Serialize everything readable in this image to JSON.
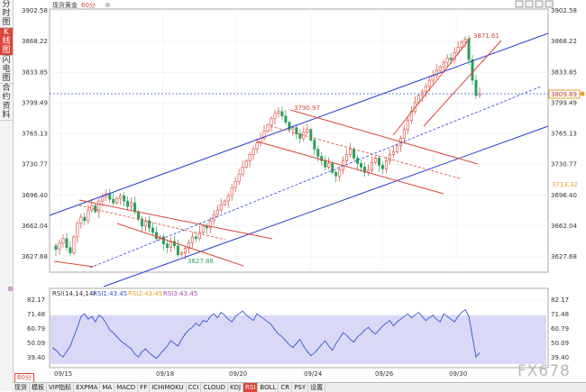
{
  "window": {
    "title": "现货黄金",
    "period": "60分",
    "watermark": "FX678"
  },
  "side_tabs": [
    "分时图",
    "K线图",
    "闪电图",
    "合约资料"
  ],
  "bottom_tabs": [
    "现货",
    "模板",
    "VIP指标",
    "EXPMA",
    "MA",
    "MACD",
    "FF",
    "ICHIMOKU",
    "CCI",
    "CLOUD",
    "KDJ",
    "RSI",
    "BOLL",
    "CR",
    "PSY",
    "设置"
  ],
  "bottom_active": "RSI",
  "period_button": "60分",
  "price_labels": {
    "high_marker": "3871.61",
    "peak_marker": "3790.97",
    "low_marker": "3627.88",
    "current_price": "3809.89",
    "channel_price": "3713.32"
  },
  "rsi_header": {
    "name": "RSI(14,14,14)",
    "rsi1": "RSI1:43.45",
    "rsi2": "RSI2:43.45",
    "rsi3": "RSI3:43.45"
  },
  "colors": {
    "up": "#d9463a",
    "down": "#2e9e5b",
    "channel_blue": "#2a3ecf",
    "channel_red": "#d9463a",
    "rsi_band": "#d9d9f7",
    "rsi1": "#3355cc",
    "rsi2": "#e0a02a",
    "rsi3": "#aa44aa"
  },
  "chart_data": {
    "type": "line",
    "price_axis": {
      "ticks": [
        "3902.58",
        "3868.22",
        "3833.85",
        "3799.49",
        "3765.13",
        "3730.77",
        "3696.40",
        "3662.04",
        "3627.68"
      ],
      "ylim": [
        3627.68,
        3902.58
      ]
    },
    "rsi_axis": {
      "ticks": [
        "82.17",
        "71.48",
        "60.79",
        "50.09",
        "39.40"
      ],
      "ylim": [
        39.4,
        82.17
      ]
    },
    "x_labels": [
      "09/15",
      "09/18",
      "09/20",
      "09/24",
      "09/26",
      "09/30"
    ],
    "price_series": [
      3640,
      3636,
      3643,
      3648,
      3638,
      3632,
      3650,
      3665,
      3672,
      3668,
      3680,
      3685,
      3678,
      3690,
      3695,
      3698,
      3692,
      3688,
      3693,
      3696,
      3690,
      3684,
      3688,
      3678,
      3670,
      3662,
      3668,
      3660,
      3655,
      3648,
      3650,
      3642,
      3638,
      3645,
      3640,
      3630,
      3632,
      3637,
      3643,
      3650,
      3648,
      3655,
      3662,
      3660,
      3668,
      3675,
      3680,
      3686,
      3690,
      3696,
      3705,
      3712,
      3720,
      3728,
      3735,
      3742,
      3748,
      3755,
      3760,
      3768,
      3775,
      3782,
      3788,
      3790,
      3785,
      3778,
      3770,
      3772,
      3765,
      3760,
      3767,
      3770,
      3758,
      3748,
      3740,
      3735,
      3728,
      3732,
      3722,
      3718,
      3725,
      3735,
      3742,
      3748,
      3738,
      3732,
      3728,
      3722,
      3725,
      3733,
      3738,
      3730,
      3726,
      3735,
      3742,
      3745,
      3752,
      3760,
      3770,
      3780,
      3790,
      3800,
      3808,
      3812,
      3818,
      3825,
      3830,
      3836,
      3840,
      3845,
      3850,
      3848,
      3856,
      3862,
      3868,
      3871,
      3848,
      3825,
      3808,
      3810
    ],
    "rsi_series": [
      47,
      45,
      42,
      40,
      44,
      48,
      55,
      62,
      70,
      72,
      68,
      70,
      66,
      71,
      69,
      65,
      60,
      58,
      55,
      52,
      50,
      48,
      46,
      42,
      40,
      44,
      46,
      43,
      41,
      39,
      42,
      45,
      48,
      52,
      50,
      48,
      53,
      57,
      60,
      62,
      65,
      63,
      67,
      66,
      70,
      72,
      69,
      73,
      71,
      68,
      66,
      70,
      72,
      74,
      71,
      69,
      67,
      72,
      70,
      68,
      66,
      64,
      60,
      57,
      55,
      52,
      49,
      47,
      50,
      53,
      48,
      44,
      41,
      43,
      46,
      49,
      52,
      48,
      45,
      50,
      54,
      58,
      56,
      53,
      51,
      55,
      57,
      60,
      62,
      59,
      57,
      60,
      63,
      65,
      67,
      63,
      66,
      68,
      70,
      72,
      69,
      71,
      73,
      70,
      67,
      69,
      71,
      68,
      66,
      72,
      70,
      68,
      66,
      70,
      73,
      75,
      70,
      55,
      40,
      43
    ]
  }
}
